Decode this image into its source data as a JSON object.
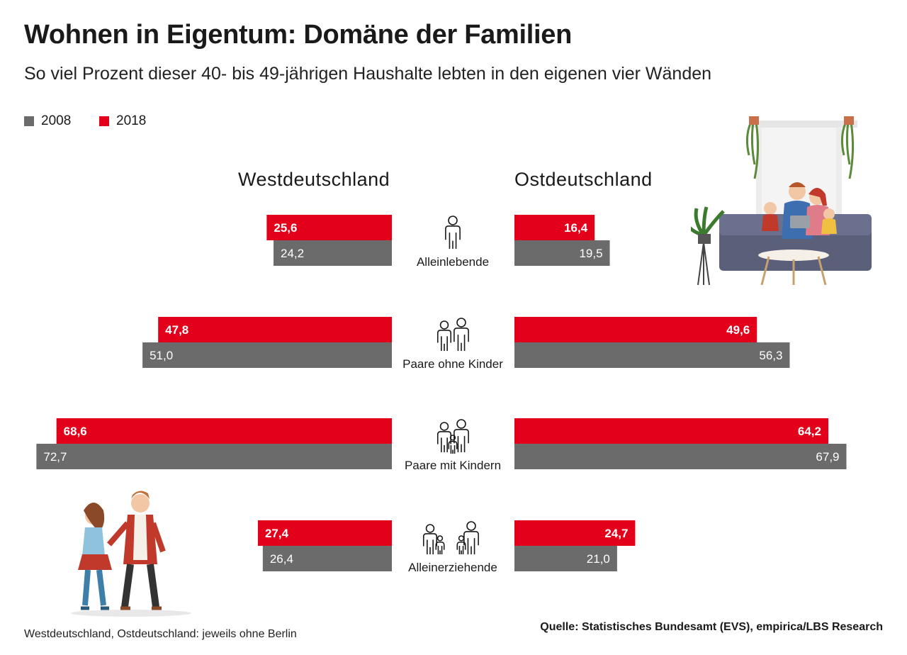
{
  "header": {
    "title": "Wohnen in Eigentum: Domäne der Familien",
    "subtitle": "So viel Prozent dieser 40- bis 49-jährigen Haushalte lebten in den eigenen vier Wänden"
  },
  "legend": [
    {
      "label": "2008",
      "color": "#6b6b6b"
    },
    {
      "label": "2018",
      "color": "#e2001a"
    }
  ],
  "regions": {
    "west": "Westdeutschland",
    "east": "Ostdeutschland"
  },
  "chart_data": {
    "type": "bar",
    "orientation": "horizontal-butterfly",
    "categories": [
      "Alleinlebende",
      "Paare ohne Kinder",
      "Paare mit Kindern",
      "Alleinerziehende"
    ],
    "category_icons": [
      "single-person-icon",
      "couple-icon",
      "family-with-child-icon",
      "single-parents-icon"
    ],
    "series": [
      {
        "name": "2018",
        "region": "Westdeutschland",
        "color": "#e2001a",
        "values": [
          25.6,
          47.8,
          68.6,
          27.4
        ],
        "labels": [
          "25,6",
          "47,8",
          "68,6",
          "27,4"
        ]
      },
      {
        "name": "2008",
        "region": "Westdeutschland",
        "color": "#6b6b6b",
        "values": [
          24.2,
          51.0,
          72.7,
          26.4
        ],
        "labels": [
          "24,2",
          "51,0",
          "72,7",
          "26,4"
        ]
      },
      {
        "name": "2018",
        "region": "Ostdeutschland",
        "color": "#e2001a",
        "values": [
          16.4,
          49.6,
          64.2,
          24.7
        ],
        "labels": [
          "16,4",
          "49,6",
          "64,2",
          "24,7"
        ]
      },
      {
        "name": "2008",
        "region": "Ostdeutschland",
        "color": "#6b6b6b",
        "values": [
          19.5,
          56.3,
          67.9,
          21.0
        ],
        "labels": [
          "19,5",
          "56,3",
          "67,9",
          "21,0"
        ]
      }
    ],
    "unit": "%"
  },
  "footer": {
    "note": "Westdeutschland, Ostdeutschland: jeweils ohne Berlin",
    "source": "Quelle: Statistisches Bundesamt (EVS), empirica/LBS Research"
  },
  "illustrations": [
    "family-sofa-illustration",
    "couple-walking-illustration"
  ]
}
